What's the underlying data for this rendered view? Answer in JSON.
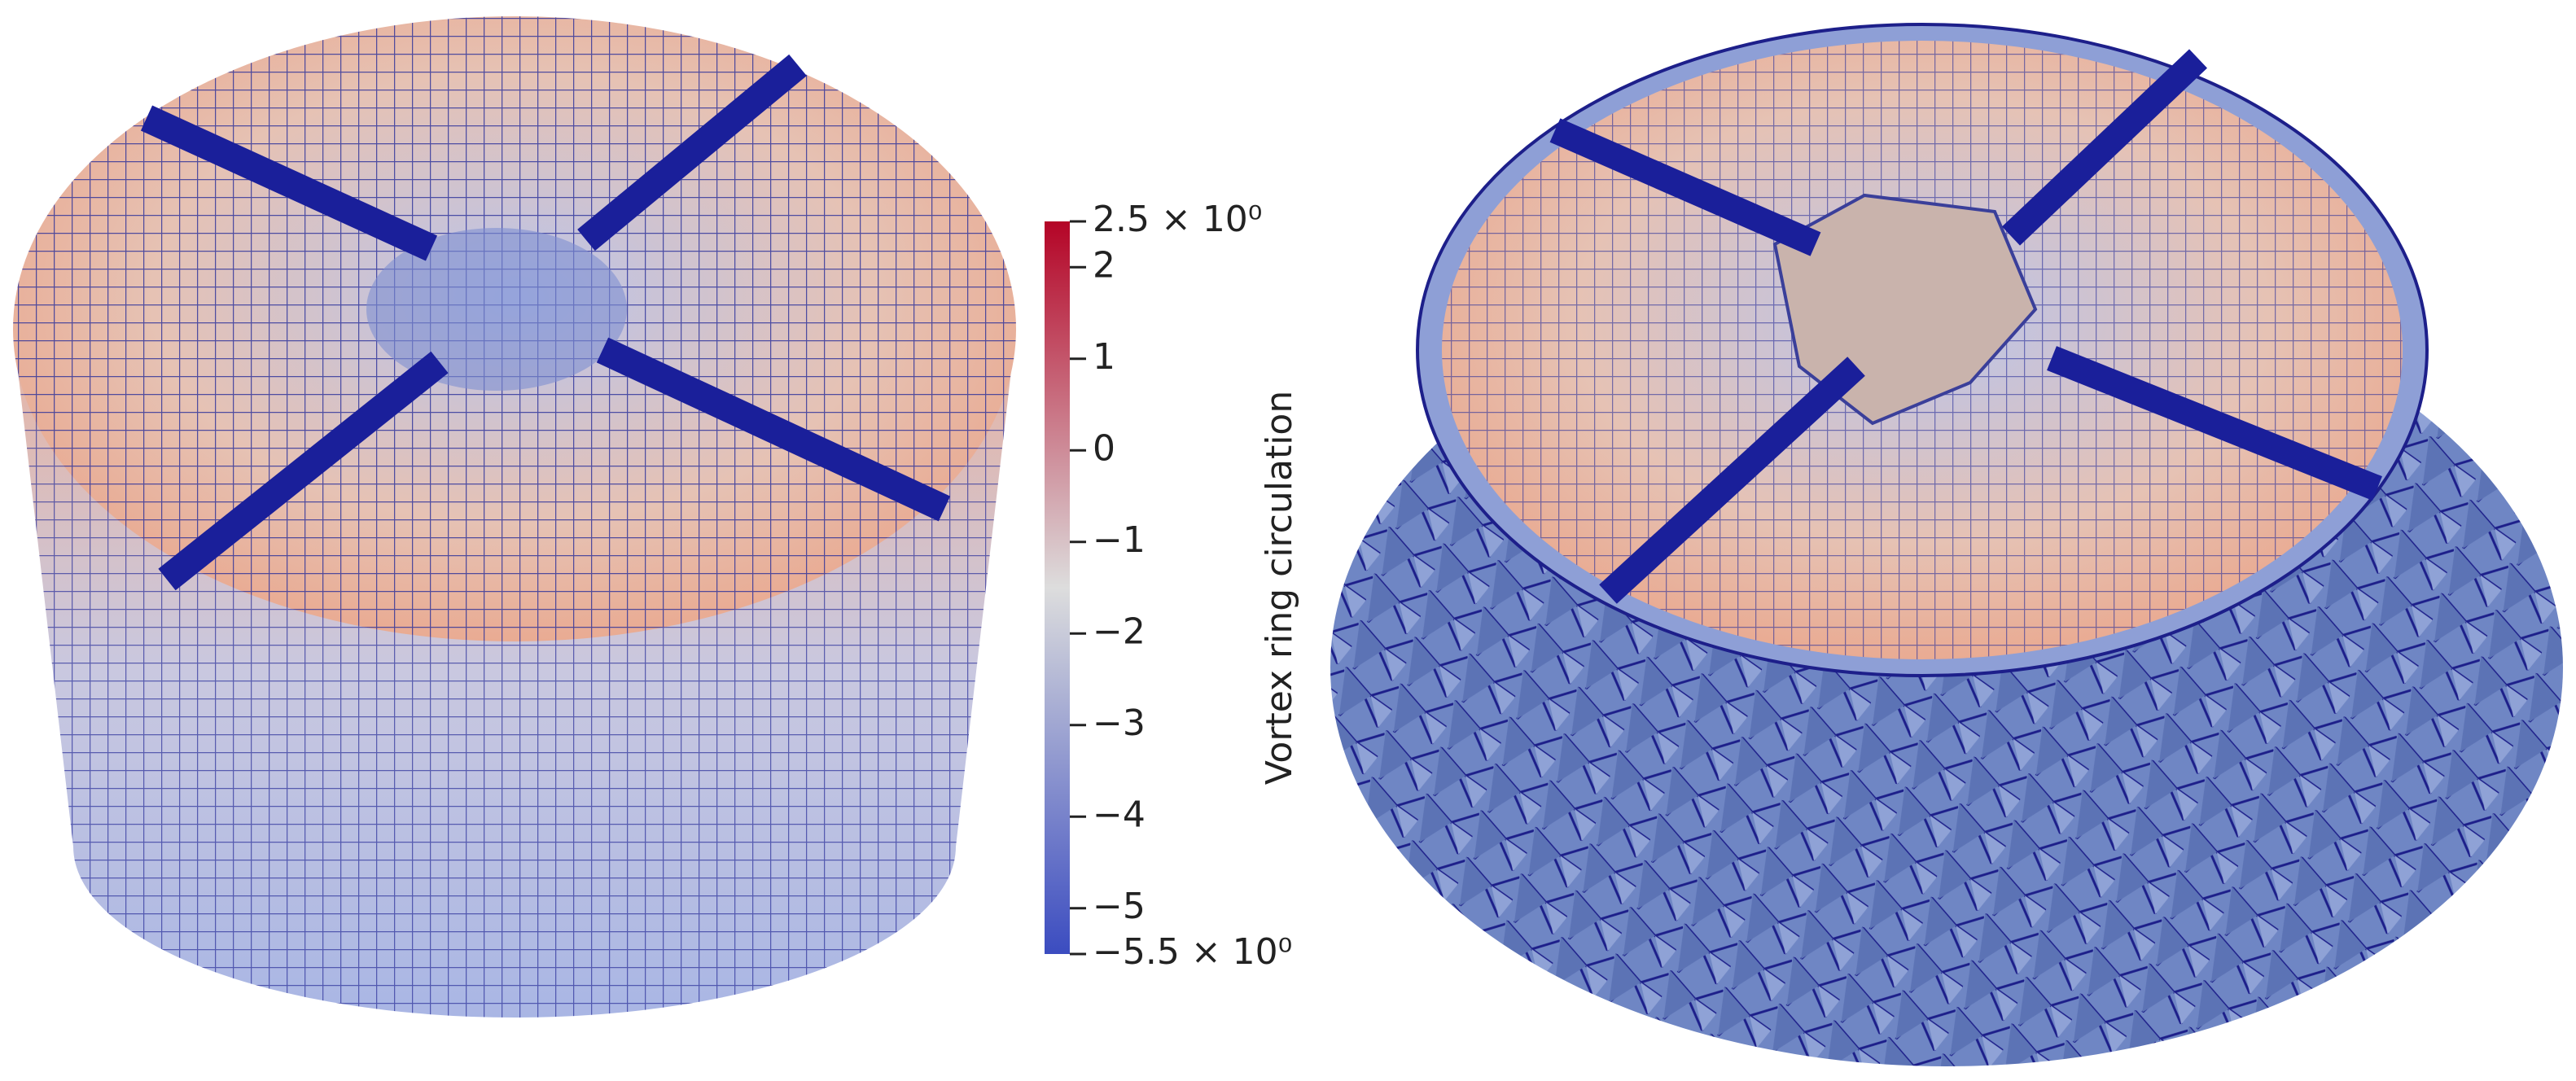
{
  "colorbar": {
    "title": "Vortex ring circulation",
    "range": [
      -5.5,
      2.5
    ],
    "ticks": [
      {
        "value": 2.5,
        "label": "2.5 × 10⁰"
      },
      2,
      1,
      0,
      {
        "value": -1,
        "label": "−1"
      },
      {
        "value": -2,
        "label": "−2"
      },
      {
        "value": -3,
        "label": "−3"
      },
      {
        "value": -4,
        "label": "−4"
      },
      {
        "value": -5,
        "label": "−5"
      },
      {
        "value": -5.5,
        "label": "−5.5 × 10⁰"
      }
    ]
  }
}
